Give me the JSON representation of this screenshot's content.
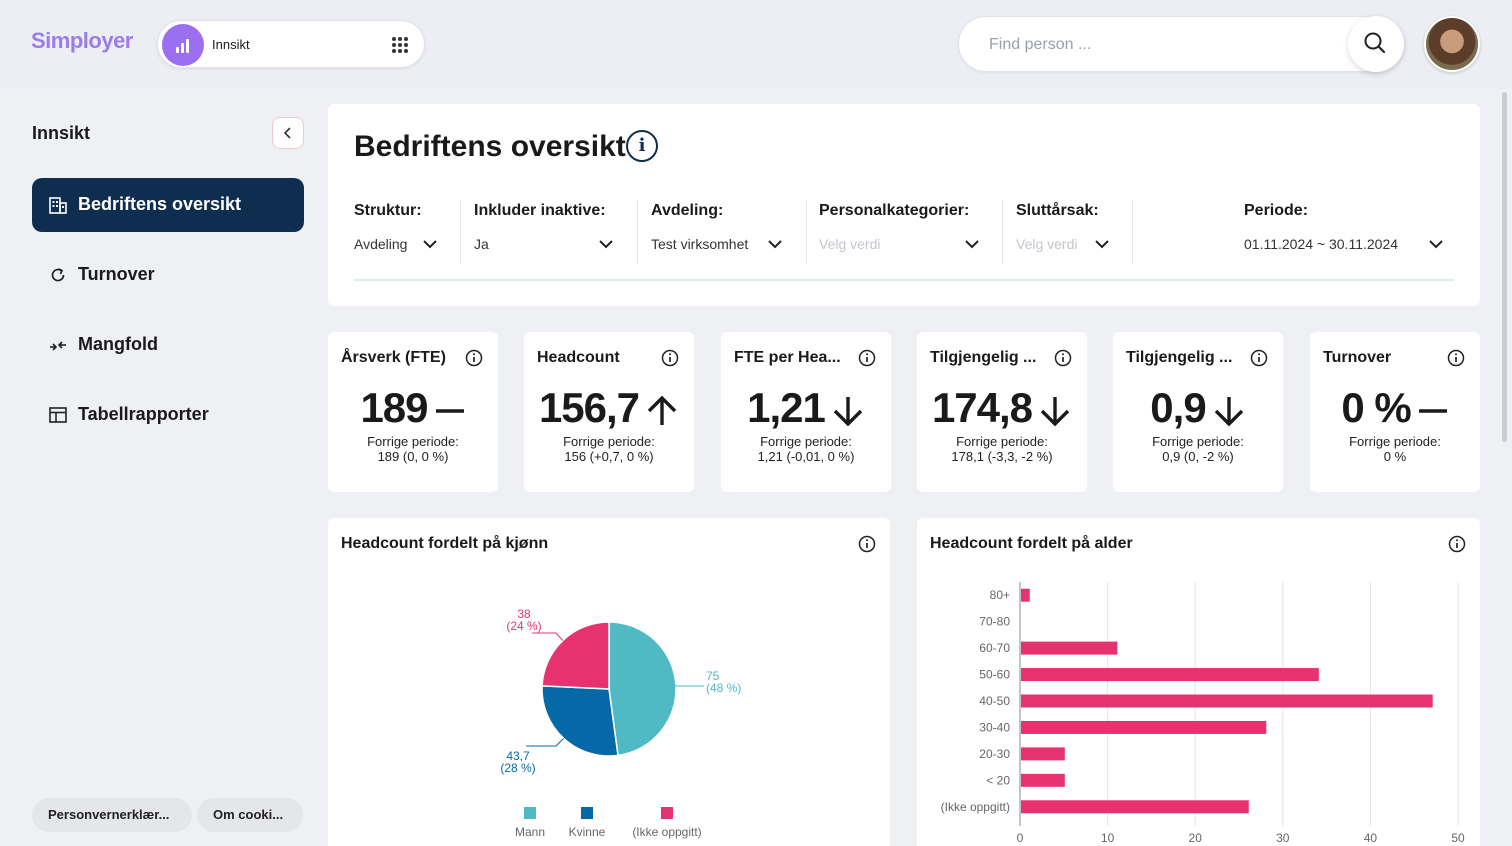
{
  "header": {
    "logo": "Simployer",
    "app_name": "Innsikt",
    "search_placeholder": "Find person ..."
  },
  "sidebar": {
    "title": "Innsikt",
    "items": [
      {
        "label": "Bedriftens oversikt",
        "icon": "building-icon",
        "active": true
      },
      {
        "label": "Turnover",
        "icon": "refresh-icon"
      },
      {
        "label": "Mangfold",
        "icon": "merge-arrows-icon"
      },
      {
        "label": "Tabellrapporter",
        "icon": "table-icon"
      }
    ],
    "footer": [
      "Personvernerklær...",
      "Om cooki..."
    ]
  },
  "main": {
    "title": "Bedriftens oversikt",
    "info_glyph": "i",
    "filters": [
      {
        "label": "Struktur:",
        "value": "Avdeling"
      },
      {
        "label": "Inkluder inaktive:",
        "value": "Ja"
      },
      {
        "label": "Avdeling:",
        "value": "Test virksomhet"
      },
      {
        "label": "Personalkategorier:",
        "value": "Velg verdi"
      },
      {
        "label": "Sluttårsak:",
        "value": "Velg verdi"
      },
      {
        "label": "Periode:",
        "value": "01.11.2024 ~ 30.11.2024"
      }
    ]
  },
  "kpis": [
    {
      "title": "Årsverk (FTE)",
      "value": "189",
      "trend": "flat",
      "prev_label": "Forrige periode:",
      "prev_value": "189 (0, 0 %)"
    },
    {
      "title": "Headcount",
      "value": "156,7",
      "trend": "up",
      "prev_label": "Forrige periode:",
      "prev_value": "156 (+0,7, 0 %)"
    },
    {
      "title": "FTE per Hea...",
      "value": "1,21",
      "trend": "down",
      "prev_label": "Forrige periode:",
      "prev_value": "1,21 (-0,01, 0 %)"
    },
    {
      "title": "Tilgjengelig ...",
      "value": "174,8",
      "trend": "down",
      "prev_label": "Forrige periode:",
      "prev_value": "178,1 (-3,3, -2 %)"
    },
    {
      "title": "Tilgjengelig ...",
      "value": "0,9",
      "trend": "down",
      "prev_label": "Forrige periode:",
      "prev_value": "0,9 (0, -2 %)"
    },
    {
      "title": "Turnover",
      "value": "0 %",
      "trend": "flat",
      "prev_label": "Forrige periode:",
      "prev_value": "0 %"
    }
  ],
  "gender_chart": {
    "title": "Headcount fordelt på kjønn"
  },
  "age_chart": {
    "title": "Headcount fordelt på alder"
  },
  "colors": {
    "navy": "#0f2e4f",
    "teal": "#4fbac3",
    "blue": "#0668a6",
    "pink": "#e6336f",
    "purple": "#9c6ff0"
  },
  "chart_data": [
    {
      "type": "pie",
      "title": "Headcount fordelt på kjønn",
      "slices": [
        {
          "name": "Mann",
          "value": 75,
          "label": "75",
          "pct_label": "(48 %)",
          "color": "#4fbac3"
        },
        {
          "name": "Kvinne",
          "value": 43.7,
          "label": "43,7",
          "pct_label": "(28 %)",
          "color": "#0668a6"
        },
        {
          "name": "(Ikke oppgitt)",
          "value": 38,
          "label": "38",
          "pct_label": "(24 %)",
          "color": "#e6336f"
        }
      ],
      "legend": "bottom"
    },
    {
      "type": "bar",
      "orientation": "horizontal",
      "title": "Headcount fordelt på alder",
      "categories": [
        "80+",
        "70-80",
        "60-70",
        "50-60",
        "40-50",
        "30-40",
        "20-30",
        "< 20",
        "(Ikke oppgitt)"
      ],
      "values": [
        1,
        0,
        11,
        34,
        47,
        28,
        5,
        5,
        26
      ],
      "xlim": [
        0,
        50
      ],
      "xticks": [
        "0",
        "10",
        "20",
        "30",
        "40",
        "50"
      ],
      "color": "#e6336f",
      "grid": true
    }
  ]
}
